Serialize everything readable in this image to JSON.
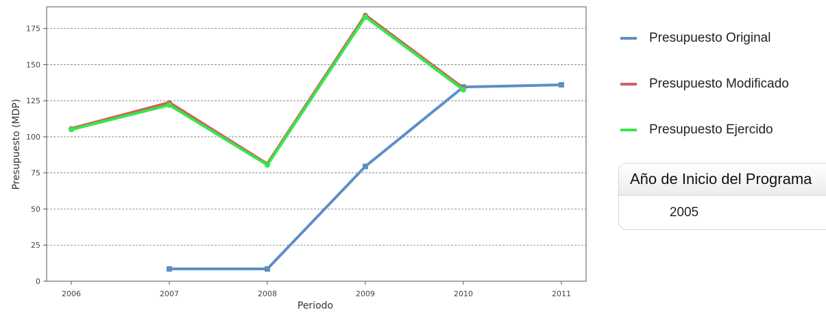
{
  "chart_data": {
    "type": "line",
    "xlabel": "Periodo",
    "ylabel": "Presupuesto (MDP)",
    "categories": [
      "2006",
      "2007",
      "2008",
      "2009",
      "2010",
      "2011"
    ],
    "ylim": [
      0,
      190
    ],
    "yticks": [
      0,
      25,
      50,
      75,
      100,
      125,
      150,
      175
    ],
    "grid": true,
    "legend_position": "right",
    "series": [
      {
        "name": "Presupuesto Original",
        "color": "#5b8fc7",
        "marker": "square",
        "values": [
          null,
          8.5,
          8.5,
          79.5,
          134.5,
          136
        ]
      },
      {
        "name": "Presupuesto Modificado",
        "color": "#d0605a",
        "marker": "circle",
        "values": [
          105.5,
          123.5,
          81,
          184,
          133.5,
          null
        ]
      },
      {
        "name": "Presupuesto Ejercido",
        "color": "#33e84a",
        "marker": "circle",
        "values": [
          105,
          122,
          80.5,
          183,
          132.5,
          null
        ]
      }
    ]
  },
  "info_box": {
    "header": "Año de Inicio del Programa",
    "value": "2005"
  }
}
